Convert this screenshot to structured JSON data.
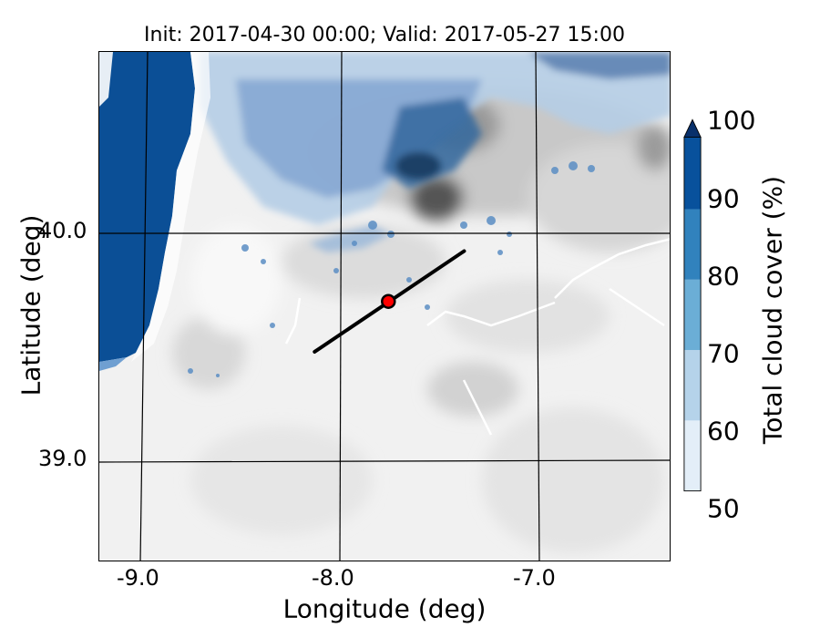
{
  "title": "Init: 2017-04-30 00:00; Valid: 2017-05-27 15:00",
  "axes": {
    "xlabel": "Longitude (deg)",
    "ylabel": "Latitude (deg)",
    "x_ticks": [
      "-9.0",
      "-8.0",
      "-7.0"
    ],
    "y_ticks": [
      "40.0",
      "39.0"
    ]
  },
  "colorbar": {
    "label": "Total cloud cover (%)",
    "ticks": [
      "50",
      "60",
      "70",
      "80",
      "90",
      "100"
    ],
    "colors": [
      "#e3eef8",
      "#b5d3ea",
      "#6baed6",
      "#3182bd",
      "#08519c"
    ],
    "extend_color": "#08306b"
  },
  "map": {
    "transect": {
      "start": [
        -8.12,
        39.48
      ],
      "end": [
        -7.37,
        39.92
      ]
    },
    "point": {
      "lon": -7.75,
      "lat": 39.7,
      "color": "#ff0000"
    },
    "sea_color": "#0b4f96",
    "terrain_color": "#f1f1f1"
  }
}
